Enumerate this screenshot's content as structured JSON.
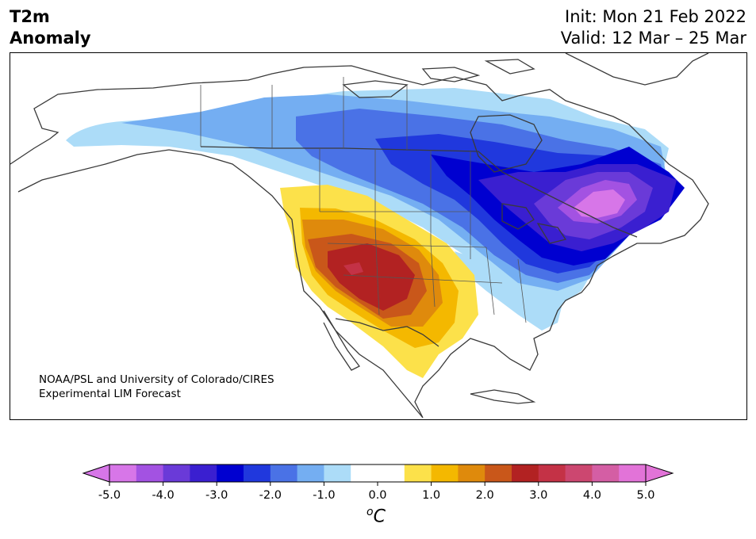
{
  "title": {
    "left_line1": "T2m",
    "left_line2": "Anomaly",
    "right_line1": "Init: Mon 21 Feb 2022",
    "right_line2": "Valid: 12 Mar – 25 Mar"
  },
  "credit": {
    "line1": "NOAA/PSL and University of Colorado/CIRES",
    "line2": "Experimental LIM Forecast"
  },
  "colorbar": {
    "unit_base": "C",
    "unit_sup": "o",
    "ticks": [
      "-5.0",
      "-4.0",
      "-3.0",
      "-2.0",
      "-1.0",
      "0.0",
      "1.0",
      "2.0",
      "3.0",
      "4.0",
      "5.0"
    ],
    "colors": [
      "#d776e8",
      "#a352e2",
      "#6a3ad8",
      "#3a1fd0",
      "#0000d0",
      "#2038dd",
      "#4a72e6",
      "#74aef2",
      "#acdcf8",
      "#ffffff",
      "#ffffff",
      "#fce14a",
      "#f4b800",
      "#df8a0c",
      "#c9571a",
      "#b22222",
      "#c43246",
      "#cc4770",
      "#d45ea4",
      "#e273d8"
    ],
    "under_color": "#d776e8",
    "over_color": "#e273d8"
  }
}
